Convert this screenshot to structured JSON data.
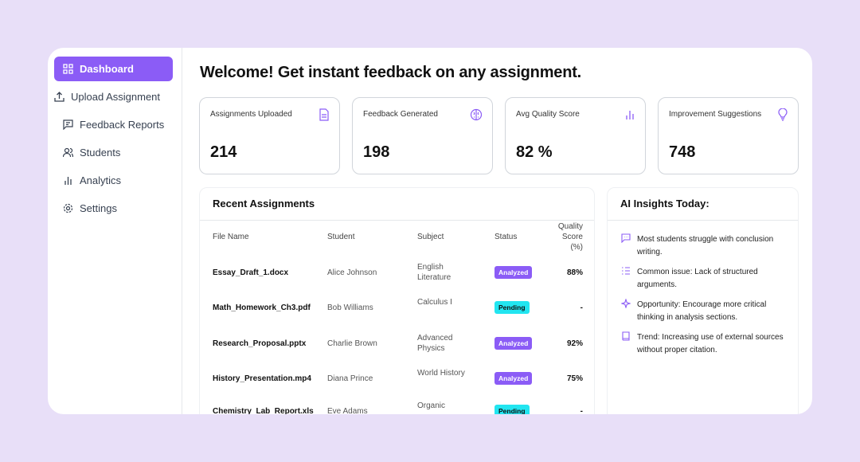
{
  "sidebar": {
    "items": [
      "Dashboard",
      "Upload Assignment",
      "Feedback Reports",
      "Students",
      "Analytics",
      "Settings"
    ]
  },
  "header": {
    "title": "Welcome! Get instant feedback on any assignment."
  },
  "cards": [
    {
      "label": "Assignments Uploaded",
      "value": "214"
    },
    {
      "label": "Feedback Generated",
      "value": "198"
    },
    {
      "label": "Avg Quality Score",
      "value": "82 %"
    },
    {
      "label": "Improvement Suggestions",
      "value": "748"
    }
  ],
  "table": {
    "title": "Recent Assignments",
    "columns": [
      "File Name",
      "Student",
      "Subject",
      "Status",
      "Quality Score (%)"
    ],
    "rows": [
      [
        "Essay_Draft_1.docx",
        "Alice Johnson",
        "English Literature",
        "Analyzed",
        "88%"
      ],
      [
        "Math_Homework_Ch3.pdf",
        "Bob Williams",
        "Calculus I",
        "Pending",
        "-"
      ],
      [
        "Research_Proposal.pptx",
        "Charlie Brown",
        "Advanced Physics",
        "Analyzed",
        "92%"
      ],
      [
        "History_Presentation.mp4",
        "Diana Prince",
        "World History",
        "Analyzed",
        "75%"
      ],
      [
        "Chemistry_Lab_Report.xls",
        "Eve Adams",
        "Organic",
        "Pending",
        "-"
      ]
    ]
  },
  "insights": {
    "title": "AI Insights Today:",
    "items": [
      "Most students struggle with conclusion writing.",
      "Common issue: Lack of structured arguments.",
      "Opportunity: Encourage more critical thinking in analysis sections.",
      "Trend: Increasing use of external sources without proper citation."
    ]
  }
}
